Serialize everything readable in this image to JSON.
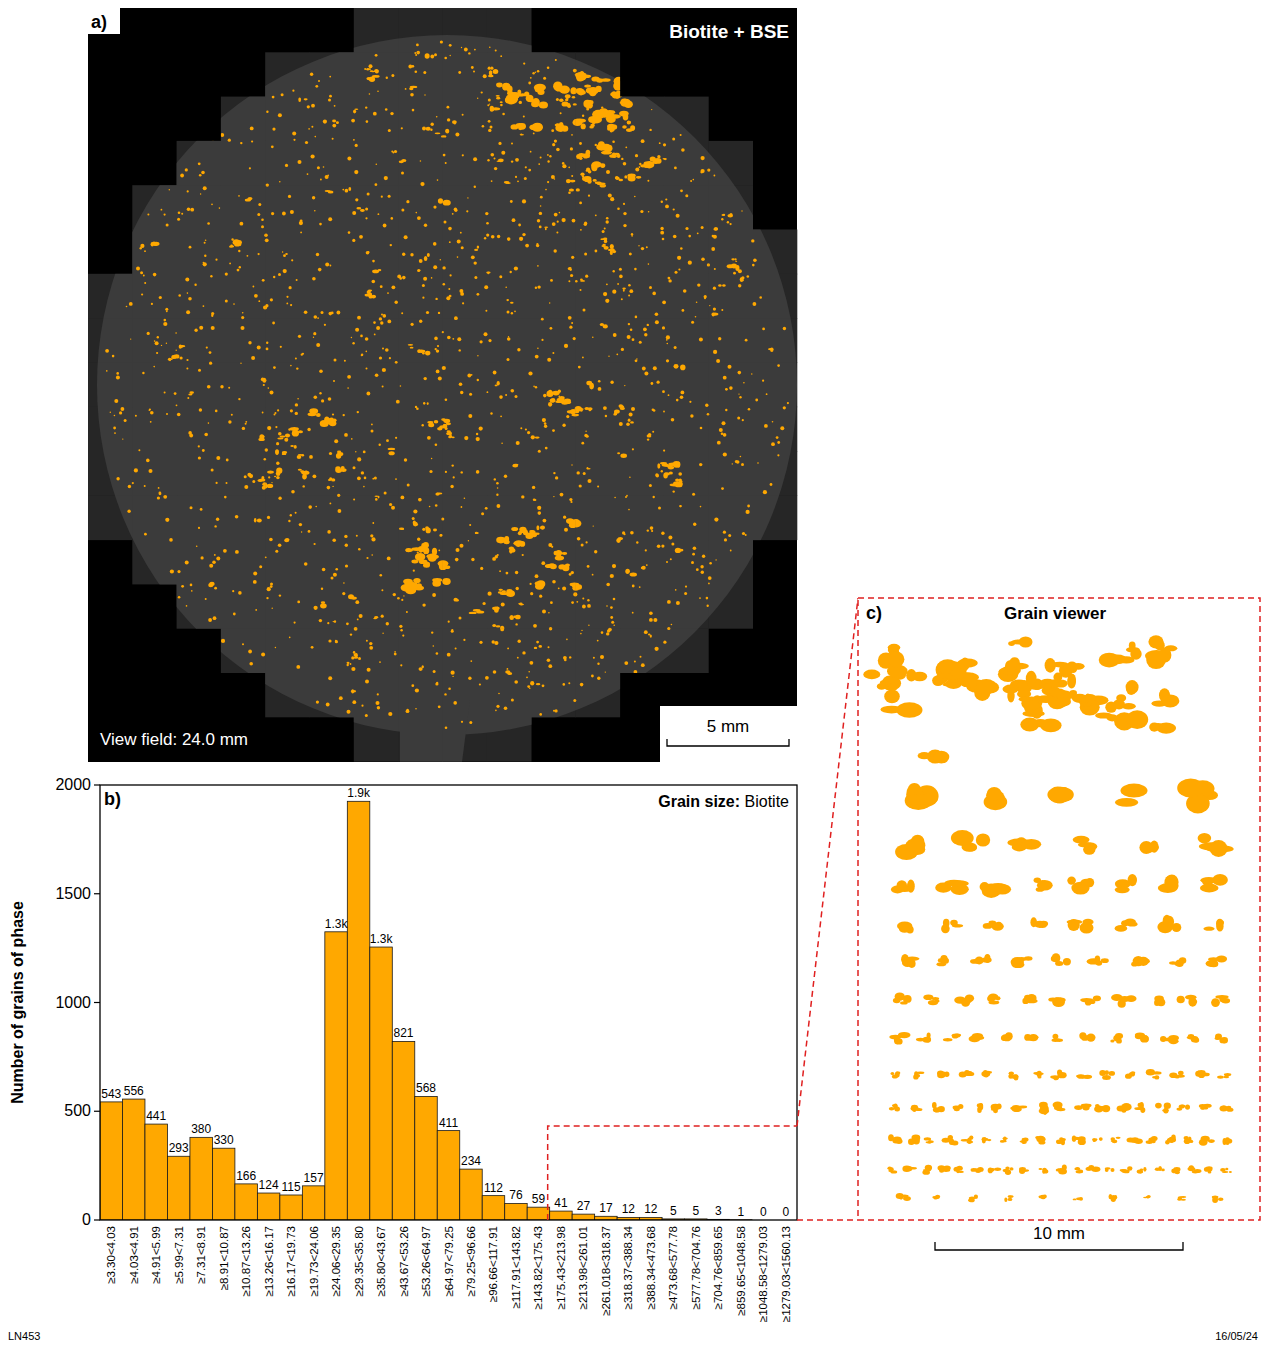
{
  "chart_data": {
    "type": "bar",
    "title": "Grain size: Biotite",
    "y_label": "Number of grains of phase",
    "categories": [
      "≥3.30<4.03",
      "≥4.03<4.91",
      "≥4.91<5.99",
      "≥5.99<7.31",
      "≥7.31<8.91",
      "≥8.91<10.87",
      "≥10.87<13.26",
      "≥13.26<16.17",
      "≥16.17<19.73",
      "≥19.73<24.06",
      "≥24.06<29.35",
      "≥29.35<35.80",
      "≥35.80<43.67",
      "≥43.67<53.26",
      "≥53.26<64.97",
      "≥64.97<79.25",
      "≥79.25<96.66",
      "≥96.66<117.91",
      "≥117.91<143.82",
      "≥143.82<175.43",
      "≥175.43<213.98",
      "≥213.98<261.01",
      "≥261.018<318.37",
      "≥318.37<388.34",
      "≥388.34<473.68",
      "≥473.68<577.78",
      "≥577.78<704.76",
      "≥704.76<859.65",
      "≥859.65<1048.58",
      "≥1048.58<1279.03",
      "≥1279.03<1560.13"
    ],
    "values": [
      543,
      556,
      441,
      293,
      380,
      330,
      166,
      124,
      115,
      157,
      1325,
      1925,
      1255,
      821,
      568,
      411,
      234,
      112,
      76,
      59,
      41,
      27,
      17,
      12,
      12,
      5,
      5,
      3,
      1,
      0,
      0
    ],
    "value_labels": [
      "543",
      "556",
      "441",
      "293",
      "380",
      "330",
      "166",
      "124",
      "115",
      "157",
      "1.3k",
      "1.9k",
      "1.3k",
      "821",
      "568",
      "411",
      "234",
      "112",
      "76",
      "59",
      "41",
      "27",
      "17",
      "12",
      "12",
      "5",
      "5",
      "3",
      "1",
      "0",
      "0"
    ],
    "color": "#ffa800",
    "ylim": [
      0,
      2000
    ],
    "yticks": [
      0,
      500,
      1000,
      1500,
      2000
    ],
    "data_labels": true,
    "grid": false
  },
  "panels": {
    "a": {
      "letter": "a)",
      "title": "Biotite + BSE",
      "view_field": "View field: 24.0 mm",
      "scale_bar": "5 mm"
    },
    "b": {
      "letter": "b)"
    },
    "c": {
      "letter": "c)",
      "title": "Grain viewer",
      "scale_bar": "10 mm"
    }
  },
  "footer": {
    "sample": "LN453",
    "date": "16/05/24"
  }
}
